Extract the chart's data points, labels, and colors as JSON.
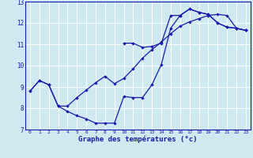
{
  "line1_x": [
    0,
    1,
    2,
    3,
    4,
    5,
    6,
    7,
    8,
    9,
    10,
    11,
    12,
    13,
    14,
    15,
    16,
    17,
    18,
    19,
    20,
    21,
    22,
    23
  ],
  "line1_y": [
    8.8,
    9.3,
    9.1,
    8.1,
    7.85,
    7.65,
    7.5,
    7.3,
    7.3,
    7.3,
    8.55,
    8.5,
    8.5,
    9.1,
    10.05,
    11.75,
    12.35,
    12.65,
    12.5,
    12.4,
    12.0,
    11.8,
    11.75,
    11.65
  ],
  "line2_x": [
    10,
    11,
    12,
    13,
    14,
    15,
    16,
    17,
    18,
    19,
    20,
    21,
    22,
    23
  ],
  "line2_y": [
    11.05,
    11.05,
    10.85,
    10.9,
    11.05,
    12.35,
    12.35,
    12.65,
    12.5,
    12.4,
    12.0,
    11.8,
    11.75,
    11.65
  ],
  "line3_x": [
    0,
    1,
    2,
    3,
    4,
    5,
    6,
    7,
    8,
    9,
    10,
    11,
    12,
    13,
    14,
    15,
    16,
    17,
    18,
    19,
    20,
    21,
    22,
    23
  ],
  "line3_y": [
    8.8,
    9.3,
    9.1,
    8.1,
    8.1,
    8.5,
    8.85,
    9.2,
    9.5,
    9.15,
    9.4,
    9.85,
    10.35,
    10.75,
    11.1,
    11.5,
    11.85,
    12.05,
    12.2,
    12.35,
    12.4,
    12.35,
    11.75,
    11.65
  ],
  "bg_color": "#cee9f0",
  "line_color": "#1a1aaa",
  "grid_color": "#ffffff",
  "xlabel": "Graphe des températures (°c)",
  "ylim": [
    7,
    13
  ],
  "xlim": [
    -0.5,
    23.5
  ],
  "yticks": [
    7,
    8,
    9,
    10,
    11,
    12,
    13
  ],
  "xticks": [
    0,
    1,
    2,
    3,
    4,
    5,
    6,
    7,
    8,
    9,
    10,
    11,
    12,
    13,
    14,
    15,
    16,
    17,
    18,
    19,
    20,
    21,
    22,
    23
  ]
}
